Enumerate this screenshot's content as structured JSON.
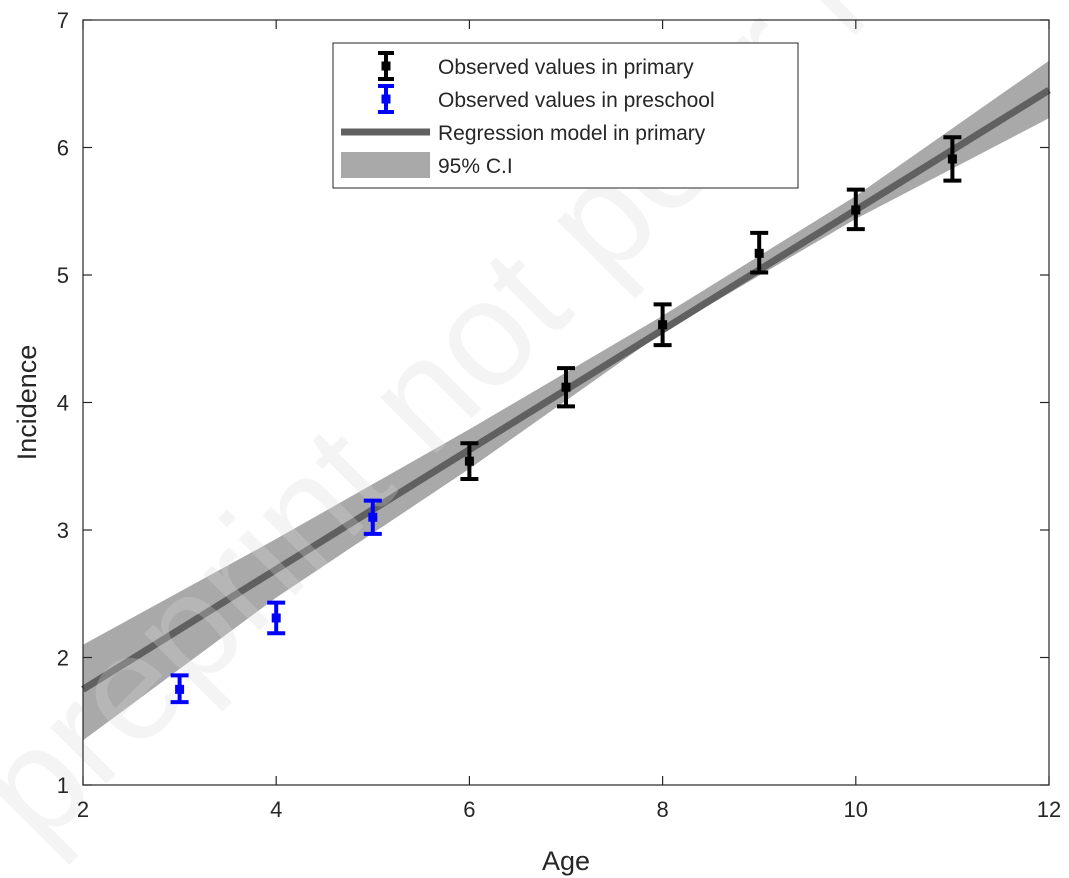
{
  "chart_data": {
    "type": "scatter",
    "title": "",
    "xlabel": "Age",
    "ylabel": "Incidence",
    "xlim": [
      2,
      12
    ],
    "ylim": [
      1,
      7
    ],
    "xticks": [
      2,
      4,
      6,
      8,
      10,
      12
    ],
    "yticks": [
      1,
      2,
      3,
      4,
      5,
      6,
      7
    ],
    "grid": false,
    "legend_position": "top-center",
    "watermark": "preprint not peer reviewed",
    "series": [
      {
        "name": "Observed values in primary",
        "kind": "errorbar",
        "color": "#000000",
        "x": [
          6,
          7,
          8,
          9,
          10,
          11
        ],
        "y": [
          3.54,
          4.12,
          4.61,
          5.17,
          5.51,
          5.91
        ],
        "lower": [
          3.4,
          3.97,
          4.45,
          5.02,
          5.36,
          5.74
        ],
        "upper": [
          3.68,
          4.27,
          4.77,
          5.33,
          5.67,
          6.08
        ]
      },
      {
        "name": "Observed values in preschool",
        "kind": "errorbar",
        "color": "#0000ff",
        "x": [
          3,
          4,
          5
        ],
        "y": [
          1.75,
          2.31,
          3.1
        ],
        "lower": [
          1.65,
          2.19,
          2.97
        ],
        "upper": [
          1.86,
          2.43,
          3.23
        ]
      },
      {
        "name": "Regression model in primary",
        "kind": "line",
        "color": "#606060",
        "x": [
          2,
          12
        ],
        "y": [
          1.75,
          6.45
        ]
      },
      {
        "name": "95% C.I",
        "kind": "band",
        "color": "#a9a9a9",
        "x": [
          2,
          4,
          6,
          8,
          10,
          12
        ],
        "lower": [
          1.35,
          2.47,
          3.48,
          4.55,
          5.44,
          6.23
        ],
        "upper": [
          2.1,
          2.93,
          3.79,
          4.68,
          5.62,
          6.68
        ]
      }
    ]
  }
}
